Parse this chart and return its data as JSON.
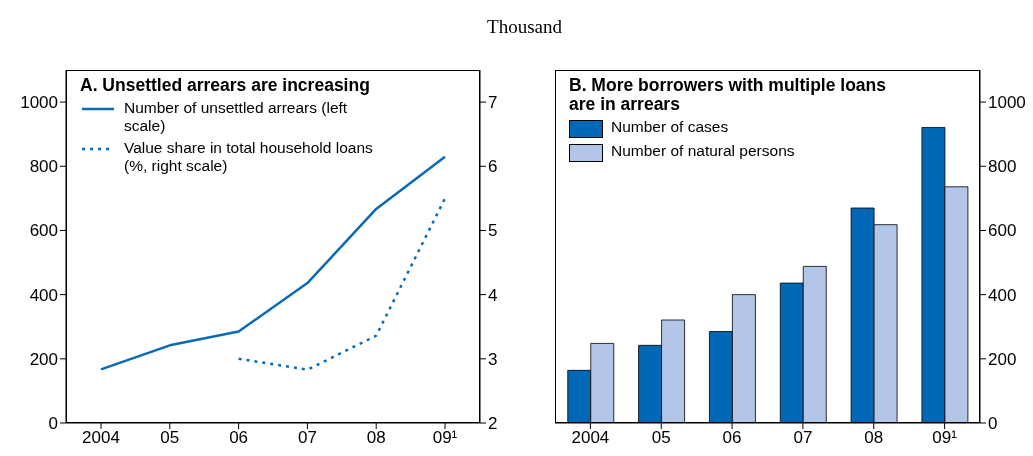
{
  "chart_data": [
    {
      "type": "line",
      "title": "A. Unsettled arrears are increasing",
      "subtitle": "Thousand",
      "categories": [
        "2004",
        "05",
        "06",
        "07",
        "08",
        "09¹"
      ],
      "legend": "top left",
      "ylim": [
        0,
        1100
      ],
      "yticks": [
        0,
        200,
        400,
        600,
        800,
        1000
      ],
      "y2lim": [
        2,
        7.5
      ],
      "y2ticks": [
        2,
        3,
        4,
        5,
        6,
        7
      ],
      "series": [
        {
          "name": "Number of unsettled arrears (left scale)",
          "color": "#0a6ab6",
          "line_style": "solid",
          "values": [
            167,
            242,
            285,
            436,
            667,
            830
          ]
        },
        {
          "name": "Value share in total household loans (%, right scale)",
          "color": "#0a6ab6",
          "line_style": "dotted",
          "axis": "y2",
          "values": [
            null,
            null,
            3.0,
            2.83,
            3.36,
            5.5
          ]
        }
      ]
    },
    {
      "type": "bar",
      "title": "B. More borrowers with multiple loans are in arrears",
      "categories": [
        "2004",
        "05",
        "06",
        "07",
        "08",
        "09¹"
      ],
      "legend": "top left",
      "y2lim": [
        0,
        1100
      ],
      "y2ticks": [
        0,
        200,
        400,
        600,
        800,
        1000
      ],
      "series": [
        {
          "name": "Number of cases",
          "color": "#0068b4",
          "axis": "y2",
          "values": [
            164,
            242,
            285,
            436,
            670,
            921
          ]
        },
        {
          "name": "Number of natural persons",
          "color": "#b4c6e7",
          "axis": "y2",
          "values": [
            248,
            321,
            400,
            488,
            618,
            736
          ]
        }
      ]
    }
  ]
}
